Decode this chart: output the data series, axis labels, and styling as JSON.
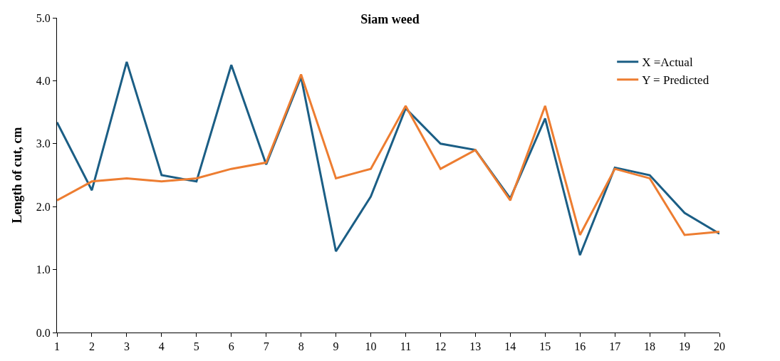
{
  "chart_data": {
    "type": "line",
    "title": "Siam weed",
    "ylabel": "Length of cut, cm",
    "x": [
      1,
      2,
      3,
      4,
      5,
      6,
      7,
      8,
      9,
      10,
      11,
      12,
      13,
      14,
      15,
      16,
      17,
      18,
      19,
      20
    ],
    "xlim": [
      1,
      20
    ],
    "xticks": [
      1,
      2,
      3,
      4,
      5,
      6,
      7,
      8,
      9,
      10,
      11,
      12,
      13,
      14,
      15,
      16,
      17,
      18,
      19,
      20
    ],
    "ylim": [
      0,
      5
    ],
    "yticks": [
      {
        "value": 0,
        "label": "0.0"
      },
      {
        "value": 1,
        "label": "1.0"
      },
      {
        "value": 2,
        "label": "2.0"
      },
      {
        "value": 3,
        "label": "3.0"
      },
      {
        "value": 4,
        "label": "4.0"
      },
      {
        "value": 5,
        "label": "5.0"
      }
    ],
    "series": [
      {
        "name": "X =Actual",
        "color": "#1b5e85",
        "values": [
          3.34,
          2.26,
          4.3,
          2.5,
          2.4,
          4.25,
          2.67,
          4.06,
          1.29,
          2.16,
          3.56,
          3.0,
          2.9,
          2.13,
          3.4,
          1.23,
          2.62,
          2.5,
          1.9,
          1.57
        ]
      },
      {
        "name": "Y = Predicted",
        "color": "#ed7d31",
        "values": [
          2.1,
          2.4,
          2.45,
          2.4,
          2.45,
          2.6,
          2.7,
          4.1,
          2.45,
          2.6,
          3.6,
          2.6,
          2.9,
          2.1,
          3.6,
          1.55,
          2.6,
          2.45,
          1.55,
          1.6
        ]
      }
    ],
    "legend": "top right",
    "marker": "none",
    "line_style": "solid"
  }
}
